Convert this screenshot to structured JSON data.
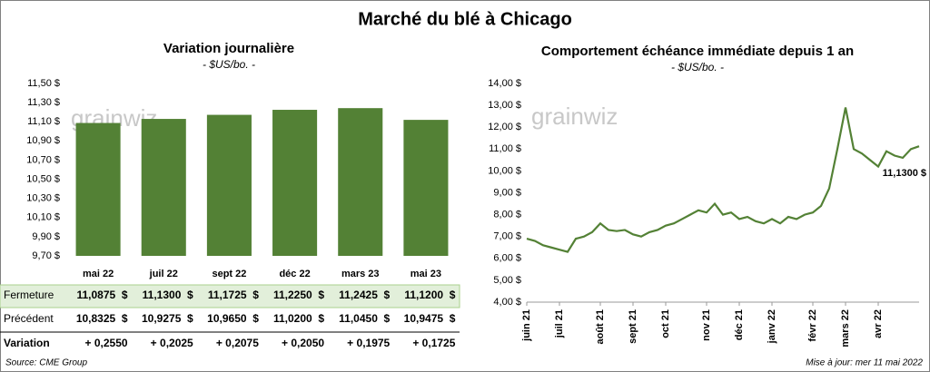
{
  "title": "Marché du blé à Chicago",
  "watermark": "grainwiz",
  "chart_data": [
    {
      "type": "bar",
      "title": "Variation journalière",
      "subtitle": "- $US/bo. -",
      "categories": [
        "mai 22",
        "juil 22",
        "sept 22",
        "déc 22",
        "mars 23",
        "mai 23"
      ],
      "values": [
        11.0875,
        11.13,
        11.1725,
        11.225,
        11.2425,
        11.12
      ],
      "color": "#538135",
      "ylim": [
        9.7,
        11.5
      ],
      "yticks": [
        {
          "value": 9.7,
          "label": "9,70 $"
        },
        {
          "value": 9.9,
          "label": "9,90 $"
        },
        {
          "value": 10.1,
          "label": "10,10 $"
        },
        {
          "value": 10.3,
          "label": "10,30 $"
        },
        {
          "value": 10.5,
          "label": "10,50 $"
        },
        {
          "value": 10.7,
          "label": "10,70 $"
        },
        {
          "value": 10.9,
          "label": "10,90 $"
        },
        {
          "value": 11.1,
          "label": "11,10 $"
        },
        {
          "value": 11.3,
          "label": "11,30 $"
        },
        {
          "value": 11.5,
          "label": "11,50 $"
        }
      ],
      "grid": false
    },
    {
      "type": "line",
      "title": "Comportement  échéance immédiate depuis 1 an",
      "subtitle": "- $US/bo. -",
      "categories": [
        "juin 21",
        null,
        null,
        null,
        "juil 21",
        null,
        null,
        null,
        null,
        "août 21",
        null,
        null,
        null,
        "sept 21",
        null,
        null,
        null,
        "oct 21",
        null,
        null,
        null,
        null,
        "nov 21",
        null,
        null,
        null,
        "déc 21",
        null,
        null,
        null,
        "janv 22",
        null,
        null,
        null,
        null,
        "févr 22",
        null,
        null,
        null,
        "mars 22",
        null,
        null,
        null,
        "avr 22",
        null,
        null,
        null,
        null,
        null
      ],
      "series": [
        {
          "name": "Échéance immédiate",
          "color": "#538135",
          "values": [
            6.9,
            6.8,
            6.6,
            6.5,
            6.4,
            6.3,
            6.9,
            7.0,
            7.2,
            7.6,
            7.3,
            7.25,
            7.3,
            7.1,
            7.0,
            7.2,
            7.3,
            7.5,
            7.6,
            7.8,
            8.0,
            8.2,
            8.1,
            8.5,
            8.0,
            8.1,
            7.8,
            7.9,
            7.7,
            7.6,
            7.8,
            7.6,
            7.9,
            7.8,
            8.0,
            8.1,
            8.4,
            9.2,
            11.0,
            12.9,
            11.0,
            10.8,
            10.5,
            10.2,
            10.9,
            10.7,
            10.6,
            11.0,
            11.13
          ]
        }
      ],
      "ylim": [
        4,
        14
      ],
      "yticks": [
        {
          "value": 4,
          "label": "4,00 $"
        },
        {
          "value": 5,
          "label": "5,00 $"
        },
        {
          "value": 6,
          "label": "6,00 $"
        },
        {
          "value": 7,
          "label": "7,00 $"
        },
        {
          "value": 8,
          "label": "8,00 $"
        },
        {
          "value": 9,
          "label": "9,00 $"
        },
        {
          "value": 10,
          "label": "10,00 $"
        },
        {
          "value": 11,
          "label": "11,00 $"
        },
        {
          "value": 12,
          "label": "12,00 $"
        },
        {
          "value": 13,
          "label": "13,00 $"
        },
        {
          "value": 14,
          "label": "14,00 $"
        }
      ],
      "annotation": "11,1300 $",
      "grid": false
    }
  ],
  "table": {
    "rows": [
      [
        "Fermeture",
        "11,0875  $",
        "11,1300  $",
        "11,1725  $",
        "11,2250  $",
        "11,2425  $",
        "11,1200  $"
      ],
      [
        "Précédent",
        "10,8325  $",
        "10,9275  $",
        "10,9650  $",
        "11,0200  $",
        "11,0450  $",
        "10,9475  $"
      ],
      [
        "Variation",
        "+ 0,2550",
        "+ 0,2025",
        "+ 0,2075",
        "+ 0,2050",
        "+ 0,1975",
        "+ 0,1725"
      ]
    ]
  },
  "footer": {
    "source": "Source: CME Group",
    "updated": "Mise à jour: mer 11 mai 2022"
  }
}
